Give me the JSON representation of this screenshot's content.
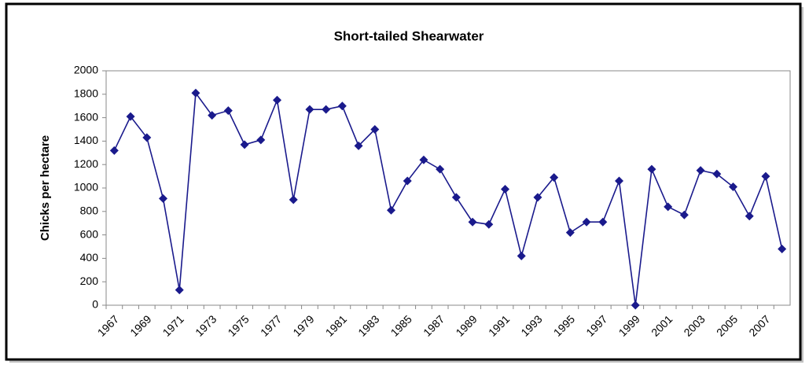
{
  "chart_data": {
    "type": "line",
    "title": "Short-tailed Shearwater",
    "y_label": "Chicks per hectare",
    "categories": [
      "1967",
      null,
      "1969",
      null,
      "1971",
      null,
      "1973",
      null,
      "1975",
      null,
      "1977",
      null,
      "1979",
      null,
      "1981",
      null,
      "1983",
      null,
      "1985",
      null,
      "1987",
      null,
      "1989",
      null,
      "1991",
      null,
      "1993",
      null,
      "1995",
      null,
      "1997",
      null,
      "1999",
      null,
      "2001",
      null,
      "2003",
      null,
      "2005",
      null,
      "2007",
      null
    ],
    "series": [
      {
        "name": "Short-tailed Shearwater",
        "color": "#1a1a8c",
        "values": [
          1320,
          1610,
          1430,
          910,
          130,
          1810,
          1620,
          1660,
          1370,
          1410,
          1750,
          900,
          1670,
          1670,
          1700,
          1360,
          1500,
          810,
          1060,
          1240,
          1160,
          920,
          710,
          690,
          990,
          420,
          920,
          1090,
          620,
          710,
          710,
          1060,
          0,
          1160,
          840,
          770,
          1150,
          1120,
          1010,
          760,
          1100,
          480
        ]
      }
    ],
    "ylim": [
      0,
      2000
    ],
    "yticks": [
      0,
      200,
      400,
      600,
      800,
      1000,
      1200,
      1400,
      1600,
      1800,
      2000
    ],
    "grid": false
  }
}
